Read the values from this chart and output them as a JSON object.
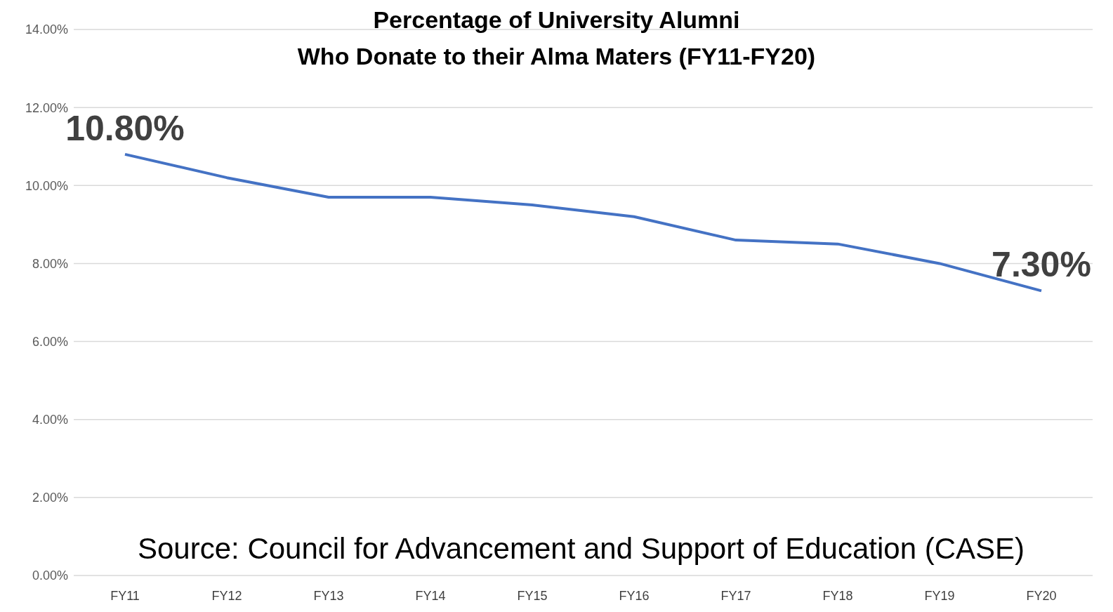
{
  "chart_data": {
    "type": "line",
    "title": "Percentage of University Alumni\nWho Donate to their Alma Maters (FY11-FY20)",
    "categories": [
      "FY11",
      "FY12",
      "FY13",
      "FY14",
      "FY15",
      "FY16",
      "FY17",
      "FY18",
      "FY19",
      "FY20"
    ],
    "series": [
      {
        "color": "#4472c4",
        "values": [
          10.8,
          10.2,
          9.7,
          9.7,
          9.5,
          9.2,
          8.6,
          8.5,
          8.0,
          7.3
        ],
        "value_labels": [
          "10.80%",
          null,
          null,
          null,
          null,
          null,
          null,
          null,
          null,
          "7.30%"
        ]
      }
    ],
    "ylim": [
      0,
      14
    ],
    "yticks": [
      {
        "value": 0,
        "label": "0.00%"
      },
      {
        "value": 2,
        "label": "2.00%"
      },
      {
        "value": 4,
        "label": "4.00%"
      },
      {
        "value": 6,
        "label": "6.00%"
      },
      {
        "value": 8,
        "label": "8.00%"
      },
      {
        "value": 10,
        "label": "10.00%"
      },
      {
        "value": 12,
        "label": "12.00%"
      },
      {
        "value": 14,
        "label": "14.00%"
      }
    ],
    "grid": "y",
    "marker": "none",
    "line_style": "solid",
    "annotations": [
      "Source:  Council for Advancement and Support of Education (CASE)"
    ]
  }
}
